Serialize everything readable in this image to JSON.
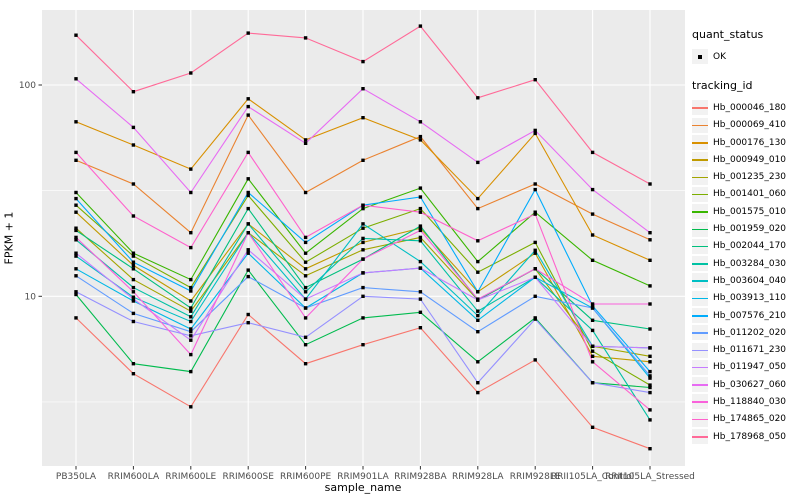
{
  "chart_data": {
    "type": "line",
    "title": "",
    "xlabel": "sample_name",
    "ylabel": "FPKM + 1",
    "y_scale": "log10",
    "ylim": [
      1.57,
      226
    ],
    "y_ticks": [
      10,
      100
    ],
    "y_tick_labels": [
      "10",
      "100"
    ],
    "y_minor_breaks": [
      3.162,
      31.62
    ],
    "grid": "on",
    "legend_position": "right",
    "panel_bg": "#EBEBEB",
    "grid_color": "#FFFFFF",
    "tick_label_color": "#4D4D4D",
    "point_color": "#000000",
    "categories": [
      "PB350LA",
      "RRIM600LA",
      "RRIM600LE",
      "RRIM600SE",
      "RRIM600PE",
      "RRIM901LA",
      "RRIM928BA",
      "RRIM928LA",
      "RRIM928LE",
      "RRII105LA_Control",
      "RRII105LA_Stressed"
    ],
    "legend_quant": {
      "title": "quant_status",
      "items": [
        {
          "label": "OK"
        }
      ]
    },
    "legend_tracking": {
      "title": "tracking_id"
    },
    "series": [
      {
        "name": "Hb_000046_180",
        "color": "#F8766D",
        "values": [
          7.9,
          4.3,
          3.0,
          8.2,
          4.8,
          5.9,
          7.1,
          3.5,
          5.0,
          2.4,
          1.9
        ]
      },
      {
        "name": "Hb_000069_410",
        "color": "#EA8331",
        "values": [
          44,
          34,
          20,
          72,
          31,
          44,
          57,
          26,
          34,
          24.5,
          18.5
        ]
      },
      {
        "name": "Hb_000176_130",
        "color": "#D89000",
        "values": [
          67,
          52,
          40,
          86,
          55,
          70,
          55,
          29,
          59,
          19.5,
          14.8
        ]
      },
      {
        "name": "Hb_000949_010",
        "color": "#C09B00",
        "values": [
          25,
          14,
          9.5,
          22,
          13.5,
          18,
          21,
          10.5,
          16,
          5.2,
          4.9
        ]
      },
      {
        "name": "Hb_001235_230",
        "color": "#A3A500",
        "values": [
          21,
          12,
          8.5,
          20,
          12.5,
          16.6,
          19,
          9.6,
          13.5,
          5.8,
          5.2
        ]
      },
      {
        "name": "Hb_001401_060",
        "color": "#7CAE00",
        "values": [
          27,
          15.5,
          11,
          30,
          14.5,
          21,
          26,
          13,
          18,
          5.5,
          3.8
        ]
      },
      {
        "name": "Hb_001575_010",
        "color": "#39B600",
        "values": [
          31,
          16,
          12,
          36,
          16,
          26,
          32.5,
          14.6,
          25,
          14.8,
          11.2
        ]
      },
      {
        "name": "Hb_001959_020",
        "color": "#00BB4E",
        "values": [
          10.2,
          4.8,
          4.4,
          13.3,
          5.9,
          7.9,
          8.4,
          4.9,
          7.9,
          3.9,
          3.7
        ]
      },
      {
        "name": "Hb_002044_170",
        "color": "#00BF7D",
        "values": [
          20.5,
          13.5,
          8.8,
          26,
          11,
          15,
          21.5,
          9.6,
          13.5,
          7.7,
          7.0
        ]
      },
      {
        "name": "Hb_003284_030",
        "color": "#00C1A3",
        "values": [
          18.5,
          11,
          8.0,
          22,
          10.5,
          18.8,
          18.3,
          8.5,
          12.3,
          6.9,
          2.6
        ]
      },
      {
        "name": "Hb_003604_040",
        "color": "#00BFC4",
        "values": [
          15.5,
          9.9,
          7.6,
          20,
          9.7,
          22,
          14.6,
          8.1,
          16.5,
          5.8,
          5.7
        ]
      },
      {
        "name": "Hb_003913_110",
        "color": "#00B8E7",
        "values": [
          13.5,
          9.5,
          7.0,
          16,
          8.8,
          12.9,
          13.6,
          7.7,
          12.3,
          8.8,
          4.1
        ]
      },
      {
        "name": "Hb_007576_210",
        "color": "#00ACFC",
        "values": [
          29,
          14.5,
          10.6,
          31,
          18,
          27,
          29.5,
          10.5,
          32,
          9.0,
          4.4
        ]
      },
      {
        "name": "Hb_011202_020",
        "color": "#619CFF",
        "values": [
          12.5,
          8.3,
          6.8,
          12.4,
          8.8,
          11,
          10.5,
          6.8,
          10,
          8.8,
          4.2
        ]
      },
      {
        "name": "Hb_011671_230",
        "color": "#9590FF",
        "values": [
          10.5,
          7.6,
          6.5,
          7.5,
          6.4,
          10,
          9.7,
          3.9,
          7.8,
          3.9,
          3.5
        ]
      },
      {
        "name": "Hb_011947_050",
        "color": "#C77CFF",
        "values": [
          16,
          9.7,
          6.2,
          16.6,
          9.7,
          12.9,
          13.6,
          9.6,
          12.3,
          5.8,
          5.7
        ]
      },
      {
        "name": "Hb_030627_060",
        "color": "#E76BF3",
        "values": [
          107,
          63,
          31,
          79,
          53,
          96,
          67,
          43,
          61,
          32,
          20
        ]
      },
      {
        "name": "Hb_118840_030",
        "color": "#FA62DB",
        "values": [
          19,
          10.5,
          5.3,
          20,
          7.9,
          15,
          20.5,
          9.7,
          13.5,
          9.2,
          9.2
        ]
      },
      {
        "name": "Hb_174865_020",
        "color": "#FF61CC",
        "values": [
          48,
          24,
          17,
          48,
          19,
          27,
          25,
          18.3,
          24.5,
          4.9,
          2.9
        ]
      },
      {
        "name": "Hb_178968_050",
        "color": "#FF6A98",
        "values": [
          172,
          93,
          114,
          176,
          167,
          129,
          190,
          87,
          106,
          48,
          34
        ]
      }
    ]
  }
}
